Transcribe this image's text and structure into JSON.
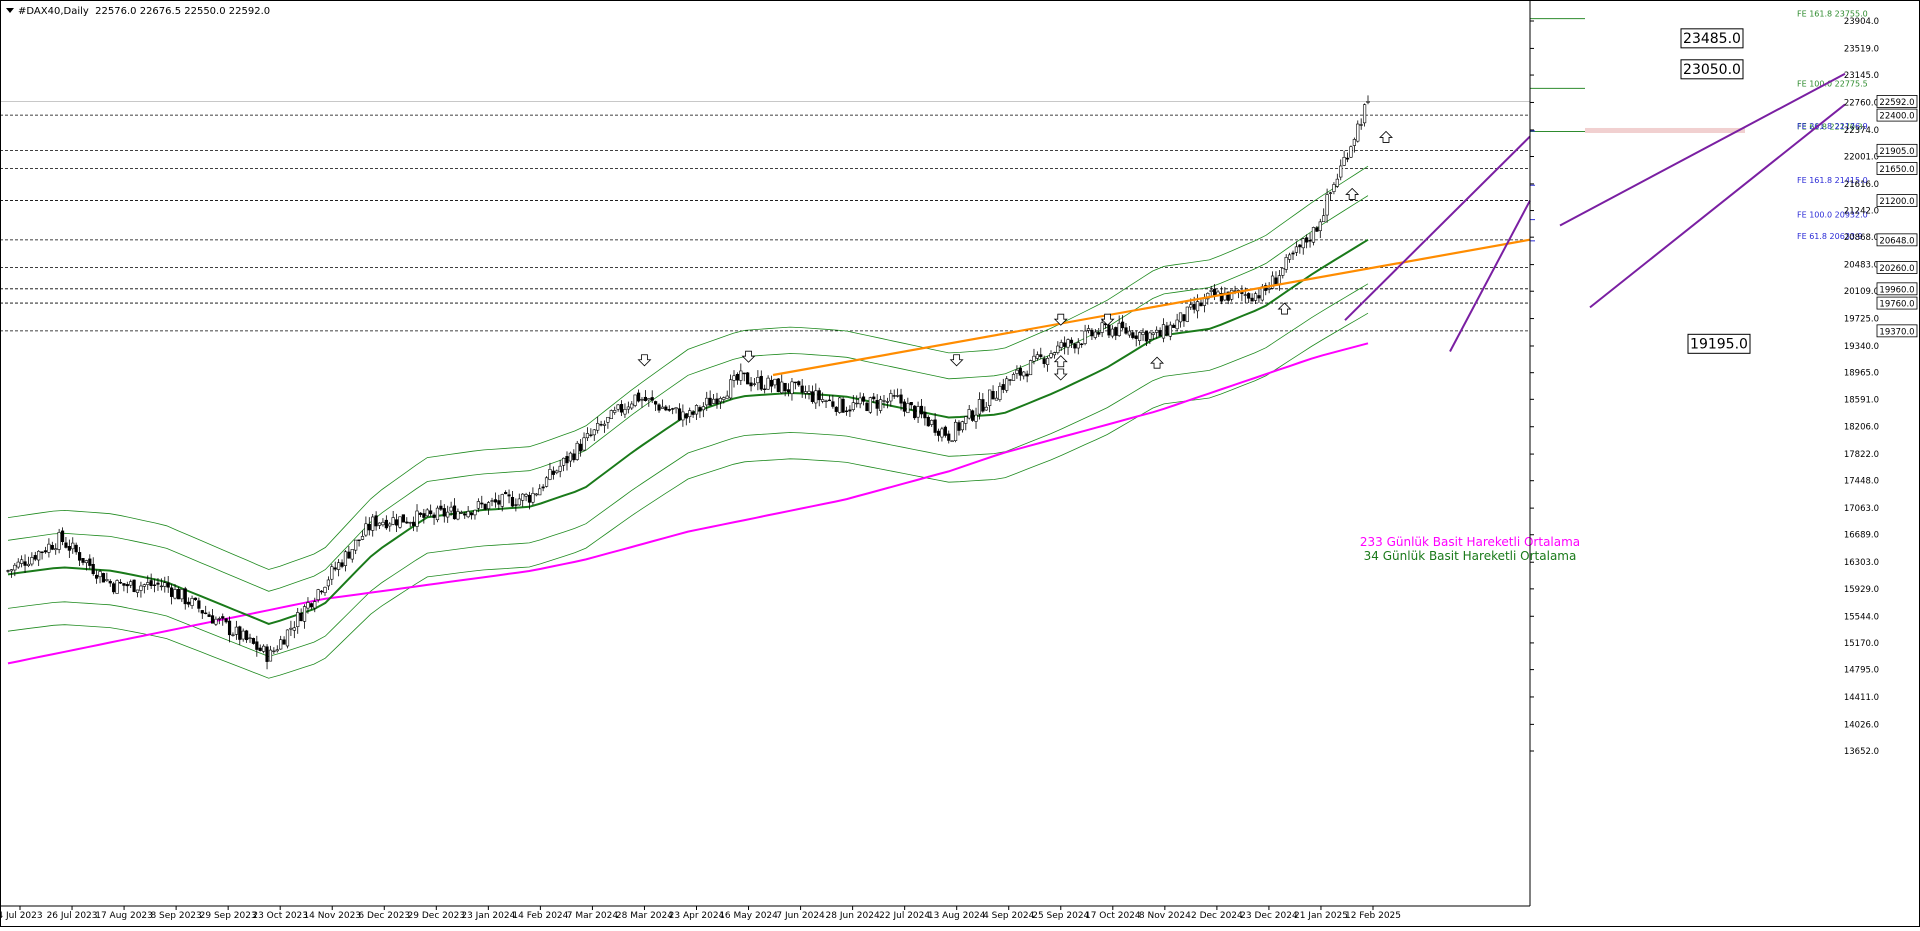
{
  "header": {
    "symbol": "#DAX40,Daily",
    "ohlc": "22576.0 22676.5 22550.0 22592.0"
  },
  "colors": {
    "background": "#ffffff",
    "candle": "#000000",
    "ma34": "#1a7a1a",
    "ma233": "#ff00ff",
    "envelope": "#1f8a1f",
    "trend_orange": "#ff8c00",
    "channel_purple": "#7a1fa2",
    "fib_green": "#2e8b2e",
    "fib_blue": "#2b2bd6",
    "level_dashed": "#000000"
  },
  "chart_data": {
    "type": "candlestick",
    "title": "#DAX40,Daily",
    "x_axis_labels": [
      "4 Jul 2023",
      "26 Jul 2023",
      "17 Aug 2023",
      "8 Sep 2023",
      "29 Sep 2023",
      "23 Oct 2023",
      "14 Nov 2023",
      "6 Dec 2023",
      "29 Dec 2023",
      "23 Jan 2024",
      "14 Feb 2024",
      "7 Mar 2024",
      "28 Mar 2024",
      "23 Apr 2024",
      "16 May 2024",
      "7 Jun 2024",
      "28 Jun 2024",
      "22 Jul 2024",
      "13 Aug 2024",
      "4 Sep 2024",
      "25 Sep 2024",
      "17 Oct 2024",
      "8 Nov 2024",
      "2 Dec 2024",
      "23 Dec 2024",
      "21 Jan 2025",
      "12 Feb 2025"
    ],
    "y_axis_ticks": [
      23904.0,
      23519.0,
      23145.0,
      22760.0,
      22374.0,
      22001.0,
      21616.0,
      21242.0,
      20868.0,
      20483.0,
      20109.0,
      19725.0,
      19340.0,
      18965.0,
      18591.0,
      18206.0,
      17822.0,
      17448.0,
      17063.0,
      16689.0,
      16303.0,
      15929.0,
      15544.0,
      15170.0,
      14795.0,
      14411.0,
      14026.0,
      13652.0
    ],
    "ylim": [
      13652.0,
      23904.0
    ],
    "price_series": [
      {
        "date": "4 Jul 2023",
        "close": 16000
      },
      {
        "date": "26 Jul 2023",
        "close": 16450
      },
      {
        "date": "17 Aug 2023",
        "close": 15800
      },
      {
        "date": "8 Sep 2023",
        "close": 15800
      },
      {
        "date": "29 Sep 2023",
        "close": 15300
      },
      {
        "date": "23 Oct 2023",
        "close": 14800
      },
      {
        "date": "14 Nov 2023",
        "close": 15800
      },
      {
        "date": "6 Dec 2023",
        "close": 16700
      },
      {
        "date": "29 Dec 2023",
        "close": 16750
      },
      {
        "date": "23 Jan 2024",
        "close": 16900
      },
      {
        "date": "14 Feb 2024",
        "close": 17050
      },
      {
        "date": "7 Mar 2024",
        "close": 17800
      },
      {
        "date": "28 Mar 2024",
        "close": 18450
      },
      {
        "date": "23 Apr 2024",
        "close": 18150
      },
      {
        "date": "16 May 2024",
        "close": 18700
      },
      {
        "date": "7 Jun 2024",
        "close": 18550
      },
      {
        "date": "28 Jun 2024",
        "close": 18300
      },
      {
        "date": "22 Jul 2024",
        "close": 18400
      },
      {
        "date": "13 Aug 2024",
        "close": 17900
      },
      {
        "date": "4 Sep 2024",
        "close": 18600
      },
      {
        "date": "25 Sep 2024",
        "close": 19100
      },
      {
        "date": "17 Oct 2024",
        "close": 19400
      },
      {
        "date": "8 Nov 2024",
        "close": 19300
      },
      {
        "date": "2 Dec 2024",
        "close": 19850
      },
      {
        "date": "23 Dec 2024",
        "close": 19900
      },
      {
        "date": "21 Jan 2025",
        "close": 20800
      },
      {
        "date": "12 Feb 2025",
        "close": 22592
      }
    ],
    "ma233_series": [
      14700,
      14850,
      15000,
      15150,
      15300,
      15450,
      15600,
      15700,
      15800,
      15900,
      16000,
      16150,
      16350,
      16550,
      16700,
      16850,
      17000,
      17200,
      17400,
      17650,
      17850,
      18050,
      18250,
      18500,
      18750,
      19000,
      19195
    ],
    "ma34_series": [
      15950,
      16050,
      16000,
      15850,
      15550,
      15250,
      15500,
      16250,
      16750,
      16850,
      16900,
      17150,
      17700,
      18200,
      18450,
      18500,
      18450,
      18300,
      18150,
      18200,
      18500,
      18850,
      19300,
      19400,
      19700,
      20200,
      20650
    ],
    "ma233_label": "233 Günlük Basit Hareketli Ortalama",
    "ma34_label": "34 Günlük Basit Hareketli Ortalama",
    "horizontal_levels": [
      22400.0,
      21905.0,
      21650.0,
      21200.0,
      20648.0,
      20260.0,
      19960.0,
      19760.0,
      19370.0
    ],
    "current_price": 22592.0,
    "target_boxes": [
      23485.0,
      23050.0,
      19195.0
    ],
    "fib_green": [
      {
        "label": "FE 161.8 23755.0",
        "value": 23755.0
      },
      {
        "label": "FE 100.0 22775.5",
        "value": 22775.5
      },
      {
        "label": "FE 61.8 22170.3",
        "value": 22170.3
      }
    ],
    "fib_blue": [
      {
        "label": "FE 261.8 22176.9",
        "value": 22176.9
      },
      {
        "label": "FE 161.8 21415.0",
        "value": 21415.0
      },
      {
        "label": "FE 100.0 20932.0",
        "value": 20932.0
      },
      {
        "label": "FE 61.8 20633.9",
        "value": 20633.9
      }
    ],
    "grid": false,
    "legend": "bottom-center"
  }
}
